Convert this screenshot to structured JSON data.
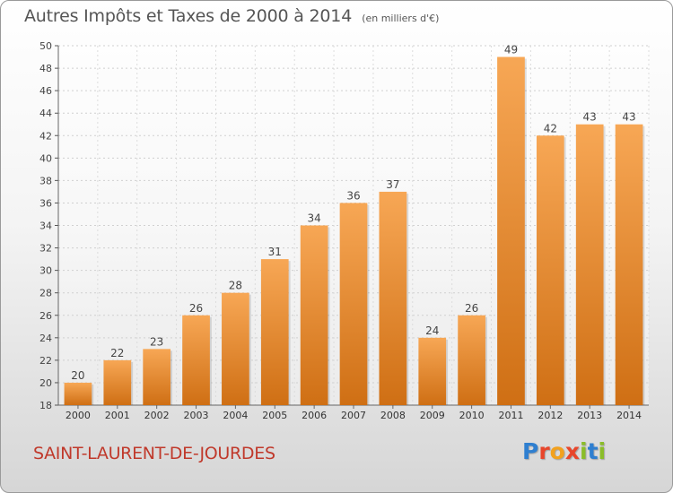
{
  "header": {
    "title": "Autres Impôts et Taxes de 2000 à 2014",
    "subtitle": "(en milliers d'€)"
  },
  "footer": {
    "commune": "SAINT-LAURENT-DE-JOURDES",
    "logo": "Proxiti"
  },
  "colors": {
    "bar_light": "#f7a755",
    "bar_dark": "#cf6f14",
    "commune_text": "#c0392b",
    "logo_letters": [
      "#2f7fd0",
      "#e8462b",
      "#f2a11e",
      "#e8462b",
      "#8bbd2a",
      "#2f7fd0",
      "#8bbd2a"
    ]
  },
  "chart_data": {
    "type": "bar",
    "title": "Autres Impôts et Taxes de 2000 à 2014",
    "subtitle": "(en milliers d'€)",
    "categories": [
      "2000",
      "2001",
      "2002",
      "2003",
      "2004",
      "2005",
      "2006",
      "2007",
      "2008",
      "2009",
      "2010",
      "2011",
      "2012",
      "2013",
      "2014"
    ],
    "values": [
      20,
      22,
      23,
      26,
      28,
      31,
      34,
      36,
      37,
      24,
      26,
      49,
      42,
      43,
      43
    ],
    "ylim": [
      18,
      50
    ],
    "yticks": [
      18,
      20,
      22,
      24,
      26,
      28,
      30,
      32,
      34,
      36,
      38,
      40,
      42,
      44,
      46,
      48,
      50
    ],
    "grid": true,
    "data_labels": true
  }
}
